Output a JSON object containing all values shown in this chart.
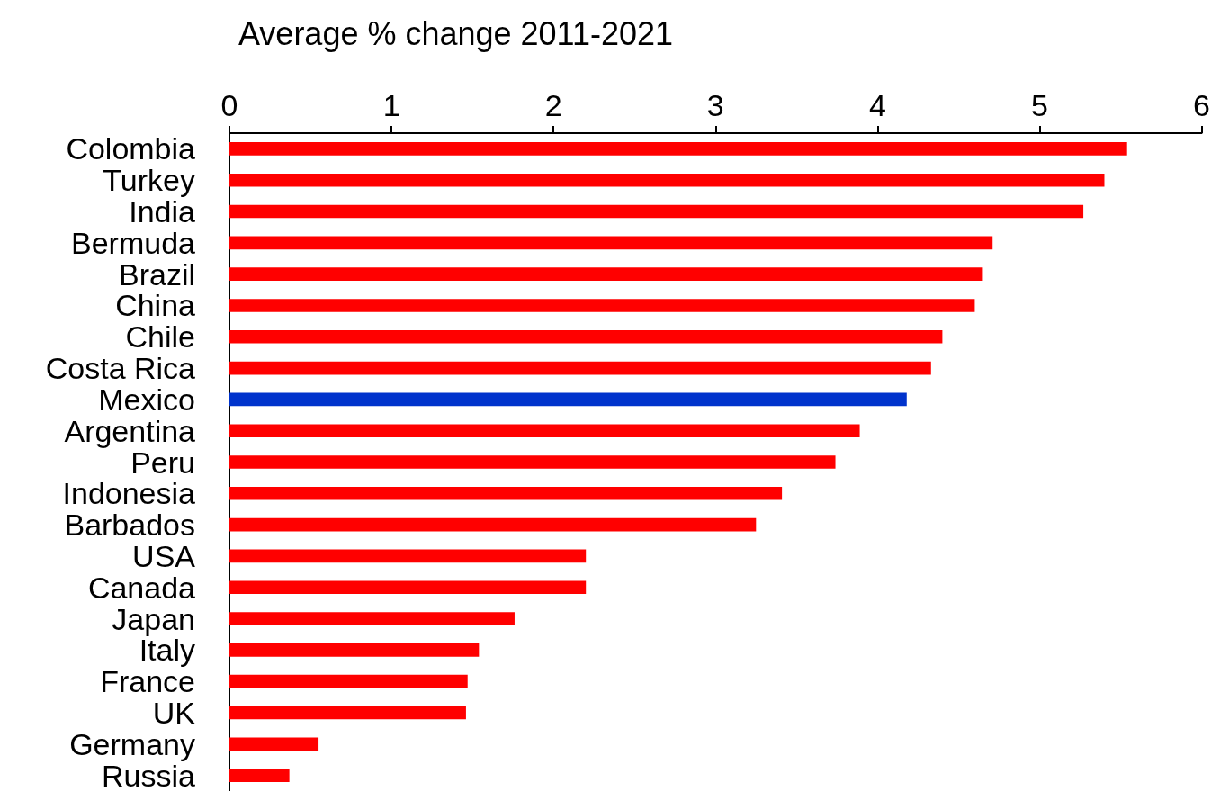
{
  "chart_data": {
    "type": "bar",
    "orientation": "horizontal",
    "xlabel": "Average % change 2011-2021",
    "categories": [
      "Colombia",
      "Turkey",
      "India",
      "Bermuda",
      "Brazil",
      "China",
      "Chile",
      "Costa Rica",
      "Mexico",
      "Argentina",
      "Peru",
      "Indonesia",
      "Barbados",
      "USA",
      "Canada",
      "Japan",
      "Italy",
      "France",
      "UK",
      "Germany",
      "Russia"
    ],
    "values": [
      5.54,
      5.4,
      5.27,
      4.71,
      4.65,
      4.6,
      4.4,
      4.33,
      4.18,
      3.89,
      3.74,
      3.41,
      3.25,
      2.2,
      2.2,
      1.76,
      1.54,
      1.47,
      1.46,
      0.55,
      0.37
    ],
    "colors": [
      "#ff0000",
      "#ff0000",
      "#ff0000",
      "#ff0000",
      "#ff0000",
      "#ff0000",
      "#ff0000",
      "#ff0000",
      "#0033cc",
      "#ff0000",
      "#ff0000",
      "#ff0000",
      "#ff0000",
      "#ff0000",
      "#ff0000",
      "#ff0000",
      "#ff0000",
      "#ff0000",
      "#ff0000",
      "#ff0000",
      "#ff0000"
    ],
    "xlim": [
      0,
      6
    ],
    "xticks": [
      0,
      1,
      2,
      3,
      4,
      5,
      6
    ],
    "grid": false
  }
}
